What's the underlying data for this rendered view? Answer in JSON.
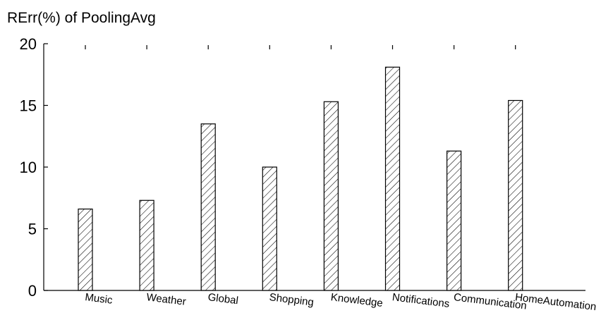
{
  "chart_data": {
    "type": "bar",
    "title": "RErr(%) of PoolingAvg",
    "xlabel": "",
    "ylabel": "",
    "categories": [
      "Music",
      "Weather",
      "Global",
      "Shopping",
      "Knowledge",
      "Notifications",
      "Communication",
      "HomeAutomation"
    ],
    "values": [
      6.6,
      7.3,
      13.5,
      10.0,
      15.3,
      18.1,
      11.3,
      15.4
    ],
    "ylim": [
      0,
      20
    ],
    "yticks": [
      0,
      5,
      10,
      15,
      20
    ],
    "grid": false,
    "legend": "none",
    "bar_fill": "diagonal-hatch",
    "bar_color": "#000000"
  }
}
